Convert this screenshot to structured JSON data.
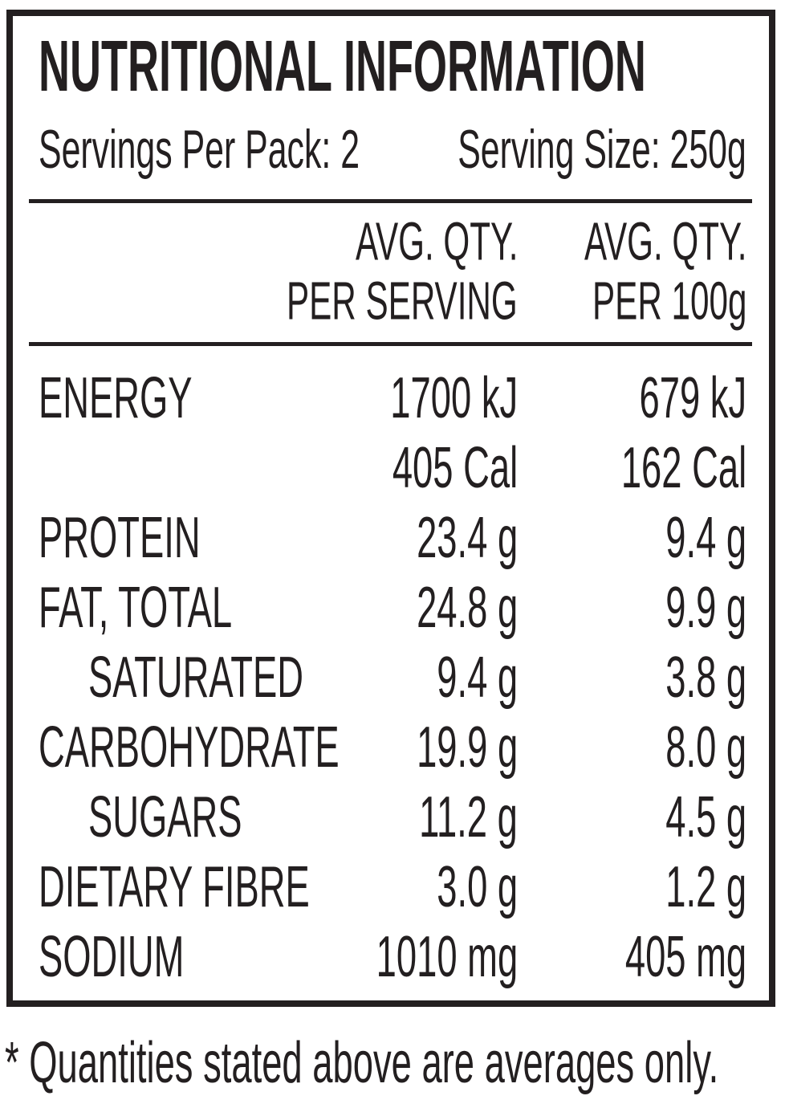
{
  "panel": {
    "title": "NUTRITIONAL INFORMATION",
    "servings_per_pack": "Servings Per Pack: 2",
    "serving_size": "Serving Size: 250g",
    "columns": {
      "per_serving": {
        "line1": "AVG. QTY.",
        "line2": "PER SERVING"
      },
      "per_100g": {
        "line1": "AVG. QTY.",
        "line2": "PER 100g"
      }
    },
    "rows": [
      {
        "label": "ENERGY",
        "per_serving": "1700 kJ",
        "per_100g": "679 kJ"
      },
      {
        "label": "",
        "per_serving": "405 Cal",
        "per_100g": "162 Cal"
      },
      {
        "label": "PROTEIN",
        "per_serving": "23.4 g",
        "per_100g": "9.4 g"
      },
      {
        "label": "FAT, TOTAL",
        "per_serving": "24.8 g",
        "per_100g": "9.9 g"
      },
      {
        "label": "SATURATED",
        "per_serving": "9.4 g",
        "per_100g": "3.8 g"
      },
      {
        "label": "CARBOHYDRATE",
        "per_serving": "19.9 g",
        "per_100g": "8.0 g"
      },
      {
        "label": "SUGARS",
        "per_serving": "11.2 g",
        "per_100g": "4.5 g"
      },
      {
        "label": "DIETARY FIBRE",
        "per_serving": "3.0 g",
        "per_100g": "1.2 g"
      },
      {
        "label": "SODIUM",
        "per_serving": "1010 mg",
        "per_100g": "405 mg"
      }
    ]
  },
  "footnote": "* Quantities stated above are averages only.",
  "ink_color": "#231f20"
}
